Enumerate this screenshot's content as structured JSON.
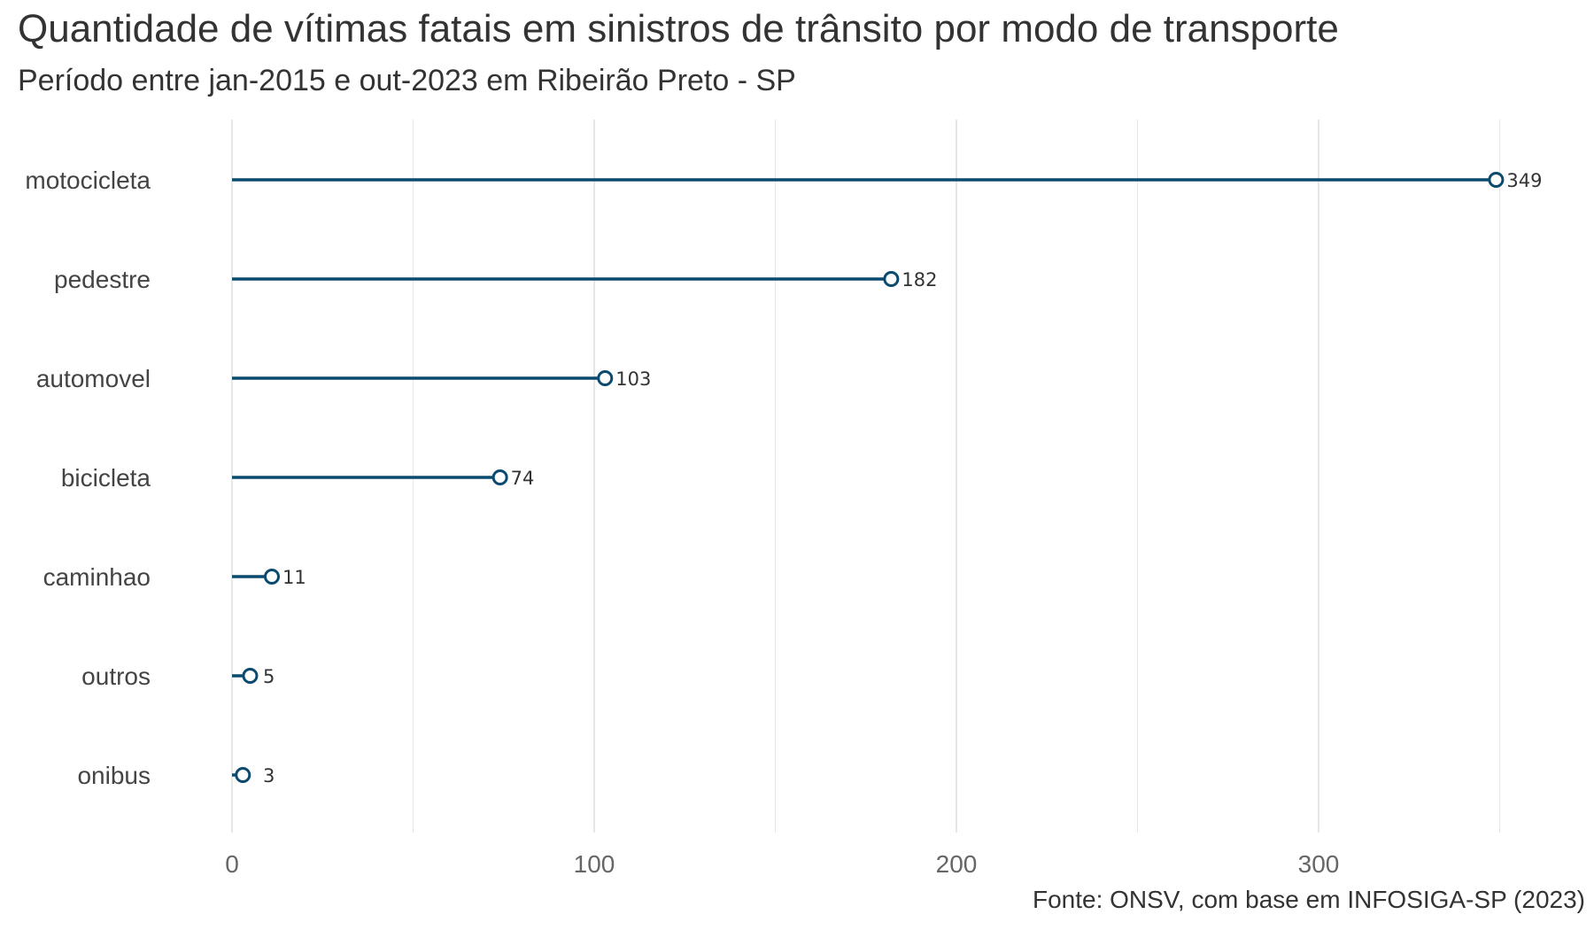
{
  "chart_data": {
    "type": "lollipop",
    "title": "Quantidade de vítimas fatais em sinistros de trânsito por modo de transporte",
    "subtitle": "Período entre jan-2015 e out-2023 em Ribeirão Preto - SP",
    "caption": "Fonte: ONSV, com base em INFOSIGA-SP (2023)",
    "xlabel": "",
    "ylabel": "",
    "categories": [
      "motocicleta",
      "pedestre",
      "automovel",
      "bicicleta",
      "caminhao",
      "outros",
      "onibus"
    ],
    "values": [
      349,
      182,
      103,
      74,
      11,
      5,
      3
    ],
    "data_labels": [
      "349",
      "182",
      "103",
      "74",
      "11",
      "5",
      "3"
    ],
    "x_ticks": [
      0,
      100,
      200,
      300
    ],
    "x_tick_labels": [
      "0",
      "100",
      "200",
      "300"
    ],
    "xlim": [
      0,
      349
    ],
    "grid": true,
    "legend": "none",
    "colors": {
      "stem": "#0b4a6f",
      "marker_fill": "#ffffff",
      "grid": "#e6e6e6",
      "text": "#333333"
    }
  }
}
